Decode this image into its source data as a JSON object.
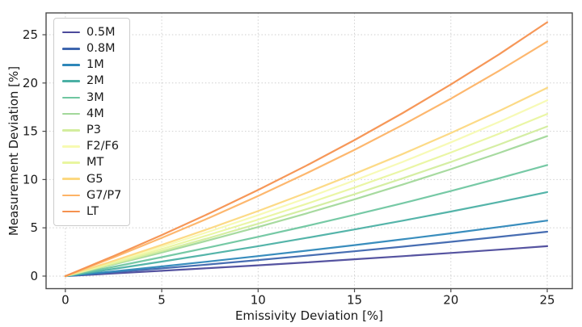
{
  "chart_data": {
    "type": "line",
    "title": "",
    "xlabel": "Emissivity Deviation [%]",
    "ylabel": "Measurement Deviation [%]",
    "xlim": [
      -1.0,
      26.3
    ],
    "ylim": [
      -1.3,
      27.26
    ],
    "x_ticks": [
      0,
      5,
      10,
      15,
      20,
      25
    ],
    "y_ticks": [
      0,
      5,
      10,
      15,
      20,
      25
    ],
    "grid": "dotted",
    "grid_color": "#cfcfcf",
    "spine_color": "#4a4a4a",
    "text_color": "#1a1a1a",
    "legend_position": "upper-left",
    "x": [
      0,
      2.5,
      5,
      7.5,
      10,
      12.5,
      15,
      17.5,
      20,
      22.5,
      25
    ],
    "series": [
      {
        "name": "0.5M",
        "color": "#4c4a9b",
        "values": [
          0,
          0.27,
          0.55,
          0.83,
          1.12,
          1.42,
          1.74,
          2.06,
          2.4,
          2.74,
          3.1
        ]
      },
      {
        "name": "0.8M",
        "color": "#3d65ae",
        "values": [
          0,
          0.4,
          0.8,
          1.22,
          1.66,
          2.11,
          2.57,
          3.05,
          3.55,
          4.06,
          4.6
        ]
      },
      {
        "name": "1M",
        "color": "#2e87b9",
        "values": [
          0,
          0.49,
          1.0,
          1.53,
          2.07,
          2.63,
          3.21,
          3.81,
          4.43,
          5.08,
          5.75
        ]
      },
      {
        "name": "2M",
        "color": "#4bb0a4",
        "values": [
          0,
          0.74,
          1.5,
          2.29,
          3.1,
          3.95,
          4.83,
          5.74,
          6.69,
          7.67,
          8.7
        ]
      },
      {
        "name": "3M",
        "color": "#6fc6a0",
        "values": [
          0,
          0.96,
          1.96,
          2.99,
          4.07,
          5.18,
          6.34,
          7.55,
          8.81,
          10.13,
          11.5
        ]
      },
      {
        "name": "4M",
        "color": "#a2d89a",
        "values": [
          0,
          1.2,
          2.44,
          3.74,
          5.08,
          6.49,
          7.95,
          9.48,
          11.08,
          12.75,
          14.5
        ]
      },
      {
        "name": "P3",
        "color": "#d3ed9e",
        "values": [
          0,
          1.28,
          2.6,
          3.98,
          5.42,
          6.92,
          8.48,
          10.12,
          11.82,
          13.62,
          15.5
        ]
      },
      {
        "name": "F2/F6",
        "color": "#f7fab2",
        "values": [
          0,
          1.48,
          3.03,
          4.64,
          6.32,
          8.07,
          9.91,
          11.83,
          13.85,
          15.97,
          18.2
        ]
      },
      {
        "name": "MT",
        "color": "#e9f6a0",
        "values": [
          0,
          1.38,
          2.81,
          4.3,
          5.85,
          7.47,
          9.17,
          10.94,
          12.8,
          14.75,
          16.8
        ]
      },
      {
        "name": "G5",
        "color": "#fcd880",
        "values": [
          0,
          1.58,
          3.23,
          4.95,
          6.74,
          8.62,
          10.59,
          12.65,
          14.82,
          17.1,
          19.5
        ]
      },
      {
        "name": "G7/P7",
        "color": "#fdb366",
        "values": [
          0,
          1.93,
          3.96,
          6.07,
          8.29,
          10.63,
          13.08,
          15.66,
          18.38,
          21.26,
          24.3
        ]
      },
      {
        "name": "LT",
        "color": "#f5914f",
        "values": [
          0,
          2.08,
          4.25,
          6.53,
          8.92,
          11.44,
          14.09,
          16.89,
          19.85,
          22.97,
          26.3
        ]
      }
    ]
  }
}
